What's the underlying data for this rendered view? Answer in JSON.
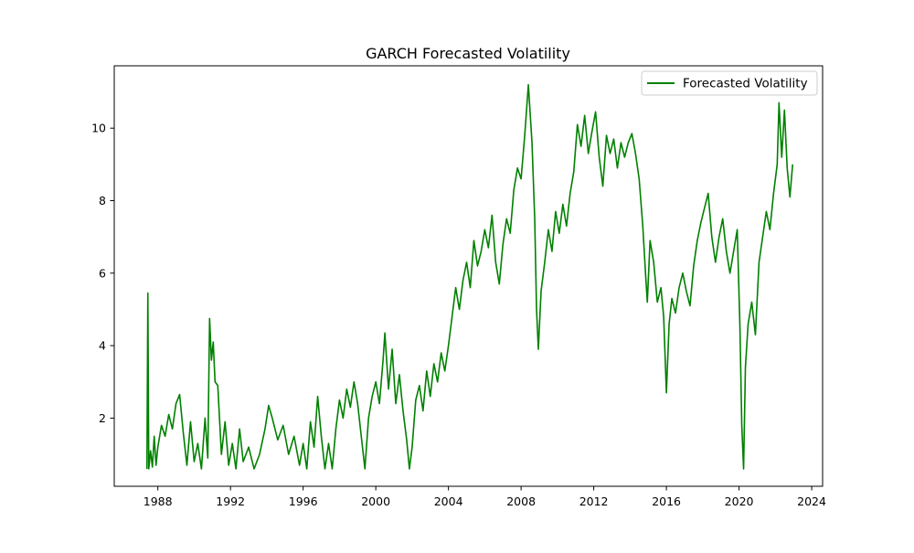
{
  "chart_data": {
    "type": "line",
    "title": "GARCH Forecasted Volatility",
    "xlabel": "",
    "ylabel": "",
    "xlim": [
      1985.6,
      2024.6
    ],
    "ylim": [
      0.12,
      11.72
    ],
    "x_ticks": [
      1988,
      1992,
      1996,
      2000,
      2004,
      2008,
      2012,
      2016,
      2020,
      2024
    ],
    "y_ticks": [
      2,
      4,
      6,
      8,
      10
    ],
    "x_tick_labels": [
      "1988",
      "1992",
      "1996",
      "2000",
      "2004",
      "2008",
      "2012",
      "2016",
      "2020",
      "2024"
    ],
    "y_tick_labels": [
      "2",
      "4",
      "6",
      "8",
      "10"
    ],
    "grid": false,
    "legend": "top-right",
    "colors": {
      "series": "#008000",
      "axes": "#000000",
      "background": "#ffffff"
    },
    "series": [
      {
        "name": "Forecasted Volatility",
        "points": [
          [
            1987.4,
            0.6
          ],
          [
            1987.45,
            5.45
          ],
          [
            1987.5,
            0.6
          ],
          [
            1987.6,
            1.1
          ],
          [
            1987.7,
            0.65
          ],
          [
            1987.8,
            1.5
          ],
          [
            1987.9,
            0.7
          ],
          [
            1988.0,
            1.2
          ],
          [
            1988.2,
            1.8
          ],
          [
            1988.4,
            1.5
          ],
          [
            1988.6,
            2.1
          ],
          [
            1988.8,
            1.7
          ],
          [
            1989.0,
            2.4
          ],
          [
            1989.2,
            2.65
          ],
          [
            1989.4,
            1.6
          ],
          [
            1989.6,
            0.7
          ],
          [
            1989.8,
            1.9
          ],
          [
            1990.0,
            0.8
          ],
          [
            1990.2,
            1.3
          ],
          [
            1990.4,
            0.6
          ],
          [
            1990.6,
            2.0
          ],
          [
            1990.75,
            0.9
          ],
          [
            1990.85,
            4.75
          ],
          [
            1990.95,
            3.6
          ],
          [
            1991.05,
            4.1
          ],
          [
            1991.15,
            3.0
          ],
          [
            1991.3,
            2.9
          ],
          [
            1991.5,
            1.0
          ],
          [
            1991.7,
            1.9
          ],
          [
            1991.9,
            0.7
          ],
          [
            1992.1,
            1.3
          ],
          [
            1992.3,
            0.6
          ],
          [
            1992.5,
            1.7
          ],
          [
            1992.7,
            0.8
          ],
          [
            1993.0,
            1.2
          ],
          [
            1993.3,
            0.6
          ],
          [
            1993.6,
            1.0
          ],
          [
            1993.9,
            1.7
          ],
          [
            1994.1,
            2.35
          ],
          [
            1994.3,
            2.0
          ],
          [
            1994.6,
            1.4
          ],
          [
            1994.9,
            1.8
          ],
          [
            1995.2,
            1.0
          ],
          [
            1995.5,
            1.5
          ],
          [
            1995.8,
            0.7
          ],
          [
            1996.0,
            1.3
          ],
          [
            1996.2,
            0.6
          ],
          [
            1996.4,
            1.9
          ],
          [
            1996.6,
            1.2
          ],
          [
            1996.8,
            2.6
          ],
          [
            1997.0,
            1.5
          ],
          [
            1997.2,
            0.6
          ],
          [
            1997.4,
            1.3
          ],
          [
            1997.6,
            0.6
          ],
          [
            1997.8,
            1.7
          ],
          [
            1998.0,
            2.5
          ],
          [
            1998.2,
            2.0
          ],
          [
            1998.4,
            2.8
          ],
          [
            1998.6,
            2.3
          ],
          [
            1998.8,
            3.0
          ],
          [
            1999.0,
            2.4
          ],
          [
            1999.2,
            1.5
          ],
          [
            1999.4,
            0.6
          ],
          [
            1999.6,
            2.0
          ],
          [
            1999.8,
            2.6
          ],
          [
            2000.0,
            3.0
          ],
          [
            2000.2,
            2.4
          ],
          [
            2000.4,
            3.6
          ],
          [
            2000.5,
            4.35
          ],
          [
            2000.7,
            2.8
          ],
          [
            2000.9,
            3.9
          ],
          [
            2001.1,
            2.4
          ],
          [
            2001.3,
            3.2
          ],
          [
            2001.5,
            2.2
          ],
          [
            2001.7,
            1.4
          ],
          [
            2001.85,
            0.6
          ],
          [
            2002.0,
            1.2
          ],
          [
            2002.2,
            2.5
          ],
          [
            2002.4,
            2.9
          ],
          [
            2002.6,
            2.2
          ],
          [
            2002.8,
            3.3
          ],
          [
            2003.0,
            2.6
          ],
          [
            2003.2,
            3.5
          ],
          [
            2003.4,
            3.0
          ],
          [
            2003.6,
            3.8
          ],
          [
            2003.8,
            3.3
          ],
          [
            2004.0,
            4.0
          ],
          [
            2004.2,
            4.8
          ],
          [
            2004.4,
            5.6
          ],
          [
            2004.6,
            5.0
          ],
          [
            2004.8,
            5.8
          ],
          [
            2005.0,
            6.3
          ],
          [
            2005.2,
            5.6
          ],
          [
            2005.4,
            6.9
          ],
          [
            2005.6,
            6.2
          ],
          [
            2005.8,
            6.6
          ],
          [
            2006.0,
            7.2
          ],
          [
            2006.2,
            6.7
          ],
          [
            2006.4,
            7.6
          ],
          [
            2006.6,
            6.3
          ],
          [
            2006.8,
            5.7
          ],
          [
            2007.0,
            6.8
          ],
          [
            2007.2,
            7.5
          ],
          [
            2007.4,
            7.1
          ],
          [
            2007.6,
            8.3
          ],
          [
            2007.8,
            8.9
          ],
          [
            2008.0,
            8.6
          ],
          [
            2008.2,
            9.8
          ],
          [
            2008.4,
            11.2
          ],
          [
            2008.6,
            9.6
          ],
          [
            2008.75,
            7.5
          ],
          [
            2008.85,
            5.0
          ],
          [
            2008.95,
            3.9
          ],
          [
            2009.1,
            5.5
          ],
          [
            2009.3,
            6.3
          ],
          [
            2009.5,
            7.2
          ],
          [
            2009.7,
            6.6
          ],
          [
            2009.9,
            7.7
          ],
          [
            2010.1,
            7.1
          ],
          [
            2010.3,
            7.9
          ],
          [
            2010.5,
            7.3
          ],
          [
            2010.7,
            8.2
          ],
          [
            2010.9,
            8.8
          ],
          [
            2011.1,
            10.1
          ],
          [
            2011.3,
            9.5
          ],
          [
            2011.5,
            10.35
          ],
          [
            2011.7,
            9.3
          ],
          [
            2011.9,
            9.9
          ],
          [
            2012.1,
            10.45
          ],
          [
            2012.3,
            9.2
          ],
          [
            2012.5,
            8.4
          ],
          [
            2012.7,
            9.8
          ],
          [
            2012.9,
            9.3
          ],
          [
            2013.1,
            9.7
          ],
          [
            2013.3,
            8.9
          ],
          [
            2013.5,
            9.6
          ],
          [
            2013.7,
            9.2
          ],
          [
            2013.9,
            9.6
          ],
          [
            2014.1,
            9.85
          ],
          [
            2014.3,
            9.3
          ],
          [
            2014.5,
            8.6
          ],
          [
            2014.7,
            7.3
          ],
          [
            2014.85,
            6.0
          ],
          [
            2014.95,
            5.2
          ],
          [
            2015.1,
            6.9
          ],
          [
            2015.3,
            6.3
          ],
          [
            2015.5,
            5.2
          ],
          [
            2015.7,
            5.6
          ],
          [
            2015.85,
            4.8
          ],
          [
            2016.0,
            2.7
          ],
          [
            2016.15,
            4.6
          ],
          [
            2016.3,
            5.3
          ],
          [
            2016.5,
            4.9
          ],
          [
            2016.7,
            5.6
          ],
          [
            2016.9,
            6.0
          ],
          [
            2017.1,
            5.5
          ],
          [
            2017.3,
            5.1
          ],
          [
            2017.5,
            6.2
          ],
          [
            2017.7,
            6.9
          ],
          [
            2017.9,
            7.4
          ],
          [
            2018.1,
            7.8
          ],
          [
            2018.3,
            8.2
          ],
          [
            2018.5,
            7.0
          ],
          [
            2018.7,
            6.3
          ],
          [
            2018.9,
            7.0
          ],
          [
            2019.1,
            7.5
          ],
          [
            2019.3,
            6.6
          ],
          [
            2019.5,
            6.0
          ],
          [
            2019.7,
            6.6
          ],
          [
            2019.9,
            7.2
          ],
          [
            2020.05,
            4.5
          ],
          [
            2020.15,
            1.8
          ],
          [
            2020.25,
            0.6
          ],
          [
            2020.35,
            3.4
          ],
          [
            2020.5,
            4.6
          ],
          [
            2020.7,
            5.2
          ],
          [
            2020.9,
            4.3
          ],
          [
            2021.1,
            6.3
          ],
          [
            2021.3,
            7.0
          ],
          [
            2021.5,
            7.7
          ],
          [
            2021.7,
            7.2
          ],
          [
            2021.9,
            8.2
          ],
          [
            2022.1,
            9.0
          ],
          [
            2022.2,
            10.7
          ],
          [
            2022.35,
            9.2
          ],
          [
            2022.5,
            10.5
          ],
          [
            2022.65,
            8.9
          ],
          [
            2022.8,
            8.1
          ],
          [
            2022.95,
            9.0
          ]
        ]
      }
    ]
  }
}
